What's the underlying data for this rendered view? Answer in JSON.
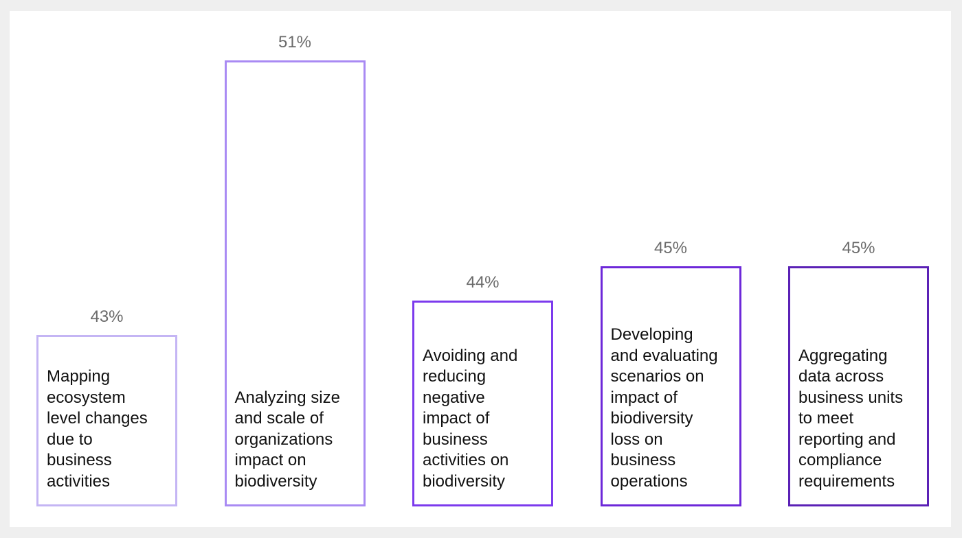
{
  "chart_data": {
    "type": "bar",
    "title": "",
    "xlabel": "",
    "ylabel": "",
    "categories": [
      "Mapping\necosystem\nlevel changes\ndue to\nbusiness\nactivities",
      "Analyzing size\nand scale of\norganizations\nimpact on\nbiodiversity",
      "Avoiding and\nreducing\nnegative\nimpact of\nbusiness\nactivities on\nbiodiversity",
      "Developing\nand evaluating\nscenarios on\nimpact of\nbiodiversity\nloss on\nbusiness\noperations",
      "Aggregating\ndata across\nbusiness units\nto meet\nreporting and\ncompliance\nrequirements"
    ],
    "values": [
      43,
      51,
      44,
      45,
      45
    ],
    "value_labels": [
      "43%",
      "51%",
      "44%",
      "45%",
      "45%"
    ],
    "ylim": [
      38,
      51
    ],
    "grid": false,
    "legend": "none",
    "colors": [
      "#c4b5f4",
      "#a98af3",
      "#7c3aed",
      "#6d28d9",
      "#5b21b6"
    ]
  }
}
